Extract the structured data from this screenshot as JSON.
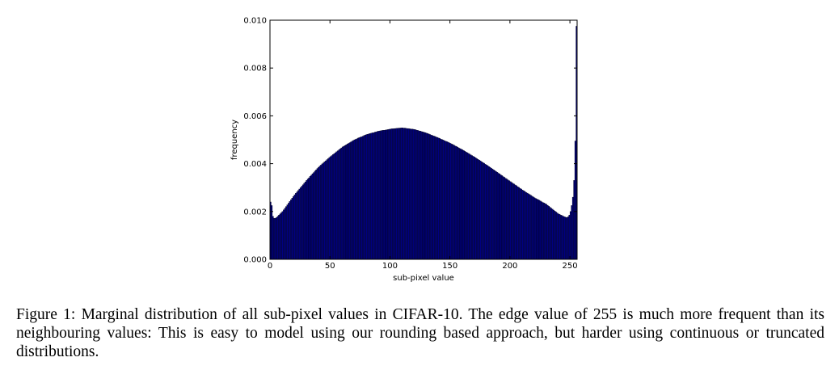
{
  "chart_data": {
    "type": "histogram",
    "xlabel": "sub-pixel value",
    "ylabel": "frequency",
    "bins": [
      0,
      1,
      2,
      3,
      4,
      5,
      6,
      7,
      8,
      9,
      10,
      11,
      12,
      13,
      14,
      15,
      16,
      17,
      18,
      19,
      20,
      21,
      22,
      23,
      24,
      25,
      26,
      27,
      28,
      29,
      30,
      31,
      32,
      33,
      34,
      35,
      36,
      37,
      38,
      39,
      40,
      41,
      42,
      43,
      44,
      45,
      46,
      47,
      48,
      49,
      50,
      51,
      52,
      53,
      54,
      55,
      56,
      57,
      58,
      59,
      60,
      61,
      62,
      63,
      64,
      65,
      66,
      67,
      68,
      69,
      70,
      71,
      72,
      73,
      74,
      75,
      76,
      77,
      78,
      79,
      80,
      81,
      82,
      83,
      84,
      85,
      86,
      87,
      88,
      89,
      90,
      91,
      92,
      93,
      94,
      95,
      96,
      97,
      98,
      99,
      100,
      101,
      102,
      103,
      104,
      105,
      106,
      107,
      108,
      109,
      110,
      111,
      112,
      113,
      114,
      115,
      116,
      117,
      118,
      119,
      120,
      121,
      122,
      123,
      124,
      125,
      126,
      127,
      128,
      129,
      130,
      131,
      132,
      133,
      134,
      135,
      136,
      137,
      138,
      139,
      140,
      141,
      142,
      143,
      144,
      145,
      146,
      147,
      148,
      149,
      150,
      151,
      152,
      153,
      154,
      155,
      156,
      157,
      158,
      159,
      160,
      161,
      162,
      163,
      164,
      165,
      166,
      167,
      168,
      169,
      170,
      171,
      172,
      173,
      174,
      175,
      176,
      177,
      178,
      179,
      180,
      181,
      182,
      183,
      184,
      185,
      186,
      187,
      188,
      189,
      190,
      191,
      192,
      193,
      194,
      195,
      196,
      197,
      198,
      199,
      200,
      201,
      202,
      203,
      204,
      205,
      206,
      207,
      208,
      209,
      210,
      211,
      212,
      213,
      214,
      215,
      216,
      217,
      218,
      219,
      220,
      221,
      222,
      223,
      224,
      225,
      226,
      227,
      228,
      229,
      230,
      231,
      232,
      233,
      234,
      235,
      236,
      237,
      238,
      239,
      240,
      241,
      242,
      243,
      244,
      245,
      246,
      247,
      248,
      249,
      250,
      251,
      252,
      253,
      254,
      255,
      256
    ],
    "values": [
      0.0024,
      0.00225,
      0.0018,
      0.00172,
      0.00172,
      0.00175,
      0.0018,
      0.00185,
      0.0019,
      0.00195,
      0.002,
      0.00207,
      0.00214,
      0.00221,
      0.00228,
      0.00235,
      0.00242,
      0.00249,
      0.00256,
      0.00263,
      0.0027,
      0.00276,
      0.00282,
      0.00288,
      0.00294,
      0.003,
      0.00306,
      0.00312,
      0.00318,
      0.00324,
      0.0033,
      0.00336,
      0.00341,
      0.00347,
      0.00352,
      0.00358,
      0.00363,
      0.00369,
      0.00374,
      0.0038,
      0.00385,
      0.0039,
      0.00394,
      0.00399,
      0.00403,
      0.00408,
      0.00412,
      0.00417,
      0.00421,
      0.00426,
      0.0043,
      0.00434,
      0.00438,
      0.00442,
      0.00446,
      0.0045,
      0.00454,
      0.00458,
      0.00462,
      0.00466,
      0.0047,
      0.00473,
      0.00476,
      0.00479,
      0.00482,
      0.00485,
      0.00488,
      0.00491,
      0.00494,
      0.00497,
      0.005,
      0.00502,
      0.00504,
      0.00507,
      0.00509,
      0.00511,
      0.00513,
      0.00515,
      0.00518,
      0.0052,
      0.00522,
      0.00523,
      0.00525,
      0.00526,
      0.00528,
      0.00529,
      0.0053,
      0.00532,
      0.00533,
      0.00535,
      0.00536,
      0.00537,
      0.00538,
      0.00539,
      0.0054,
      0.0054,
      0.00541,
      0.00542,
      0.00543,
      0.00544,
      0.00545,
      0.00546,
      0.00546,
      0.00547,
      0.00547,
      0.00548,
      0.00548,
      0.00549,
      0.00549,
      0.0055,
      0.0055,
      0.00549,
      0.00549,
      0.00548,
      0.00547,
      0.00547,
      0.00546,
      0.00545,
      0.00545,
      0.00544,
      0.00543,
      0.00542,
      0.0054,
      0.00539,
      0.00537,
      0.00536,
      0.00534,
      0.00533,
      0.00531,
      0.0053,
      0.00528,
      0.00526,
      0.00524,
      0.00522,
      0.0052,
      0.00518,
      0.00516,
      0.00514,
      0.00512,
      0.0051,
      0.00508,
      0.00506,
      0.00503,
      0.00501,
      0.00499,
      0.00496,
      0.00494,
      0.00492,
      0.0049,
      0.00487,
      0.00485,
      0.00482,
      0.0048,
      0.00477,
      0.00474,
      0.00472,
      0.00469,
      0.00466,
      0.00463,
      0.00461,
      0.00458,
      0.00455,
      0.00452,
      0.00449,
      0.00446,
      0.00443,
      0.0044,
      0.00437,
      0.00434,
      0.00431,
      0.00428,
      0.00425,
      0.00421,
      0.00418,
      0.00415,
      0.00412,
      0.00408,
      0.00405,
      0.00402,
      0.00398,
      0.00395,
      0.00392,
      0.00388,
      0.00385,
      0.00381,
      0.00378,
      0.00374,
      0.00371,
      0.00367,
      0.00364,
      0.0036,
      0.00357,
      0.00353,
      0.0035,
      0.00346,
      0.00343,
      0.00339,
      0.00336,
      0.00332,
      0.00329,
      0.00325,
      0.00322,
      0.00318,
      0.00315,
      0.00311,
      0.00308,
      0.00304,
      0.00301,
      0.00297,
      0.00294,
      0.0029,
      0.00287,
      0.00284,
      0.0028,
      0.00277,
      0.00274,
      0.00271,
      0.00268,
      0.00264,
      0.00261,
      0.00258,
      0.00255,
      0.00252,
      0.0025,
      0.00247,
      0.00244,
      0.00241,
      0.00238,
      0.00236,
      0.00233,
      0.0023,
      0.00226,
      0.00222,
      0.00218,
      0.00214,
      0.0021,
      0.00206,
      0.00202,
      0.00198,
      0.00194,
      0.0019,
      0.00188,
      0.00185,
      0.00183,
      0.0018,
      0.00178,
      0.00176,
      0.00175,
      0.00178,
      0.00185,
      0.002,
      0.00225,
      0.0026,
      0.0033,
      0.00495,
      0.00975
    ],
    "color": "#000080",
    "xlim": [
      0,
      256
    ],
    "xticks": [
      0,
      50,
      100,
      150,
      200,
      250
    ],
    "ylim": [
      0,
      0.01
    ],
    "yticks": [
      {
        "value": 0,
        "label": "0.000"
      },
      {
        "value": 0.002,
        "label": "0.002"
      },
      {
        "value": 0.004,
        "label": "0.004"
      },
      {
        "value": 0.006,
        "label": "0.006"
      },
      {
        "value": 0.008,
        "label": "0.008"
      },
      {
        "value": 0.01,
        "label": "0.010"
      }
    ]
  },
  "caption": "Figure 1: Marginal distribution of all sub-pixel values in CIFAR-10. The edge value of 255 is much more frequent than its neighbouring values: This is easy to model using our rounding based approach, but harder using continuous or truncated distributions."
}
